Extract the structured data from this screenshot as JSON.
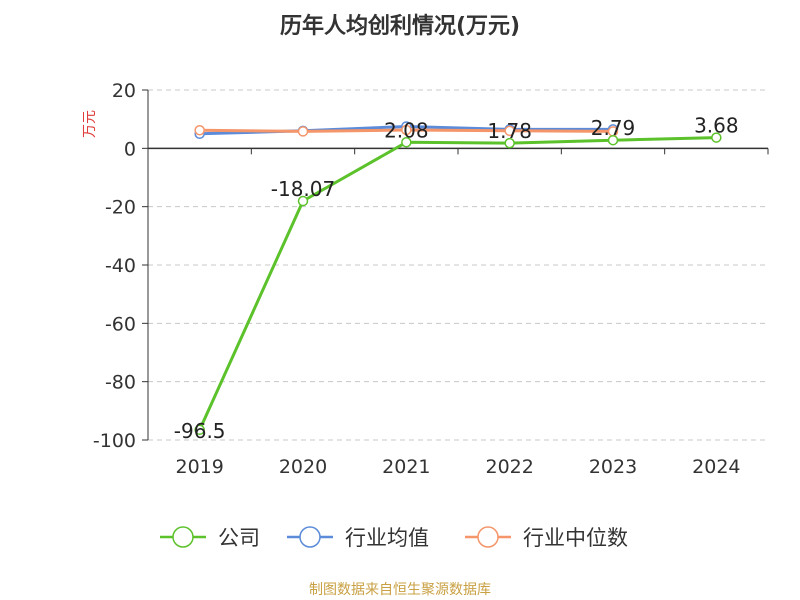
{
  "chart_data": {
    "type": "line",
    "title": "历年人均创利情况(万元)",
    "ylabel": "万元",
    "xlabel": "",
    "categories": [
      "2019",
      "2020",
      "2021",
      "2022",
      "2023",
      "2024"
    ],
    "ylim": [
      -100,
      20
    ],
    "yticks": [
      20,
      0,
      -20,
      -40,
      -60,
      -80,
      -100
    ],
    "grid": true,
    "legend_position": "bottom",
    "series": [
      {
        "name": "公司",
        "color": "#5cc22b",
        "values": [
          -96.5,
          -18.07,
          2.08,
          1.78,
          2.79,
          3.68
        ],
        "labels": [
          "-96.5",
          "-18.07",
          "2.08",
          "1.78",
          "2.79",
          "3.68"
        ]
      },
      {
        "name": "行业均值",
        "color": "#5b8bd9",
        "values": [
          5.0,
          6.0,
          7.5,
          6.5,
          6.5,
          null
        ]
      },
      {
        "name": "行业中位数",
        "color": "#f4956a",
        "values": [
          6.2,
          5.8,
          6.3,
          6.0,
          5.8,
          null
        ]
      }
    ]
  },
  "footer": {
    "source": "制图数据来自恒生聚源数据库"
  }
}
